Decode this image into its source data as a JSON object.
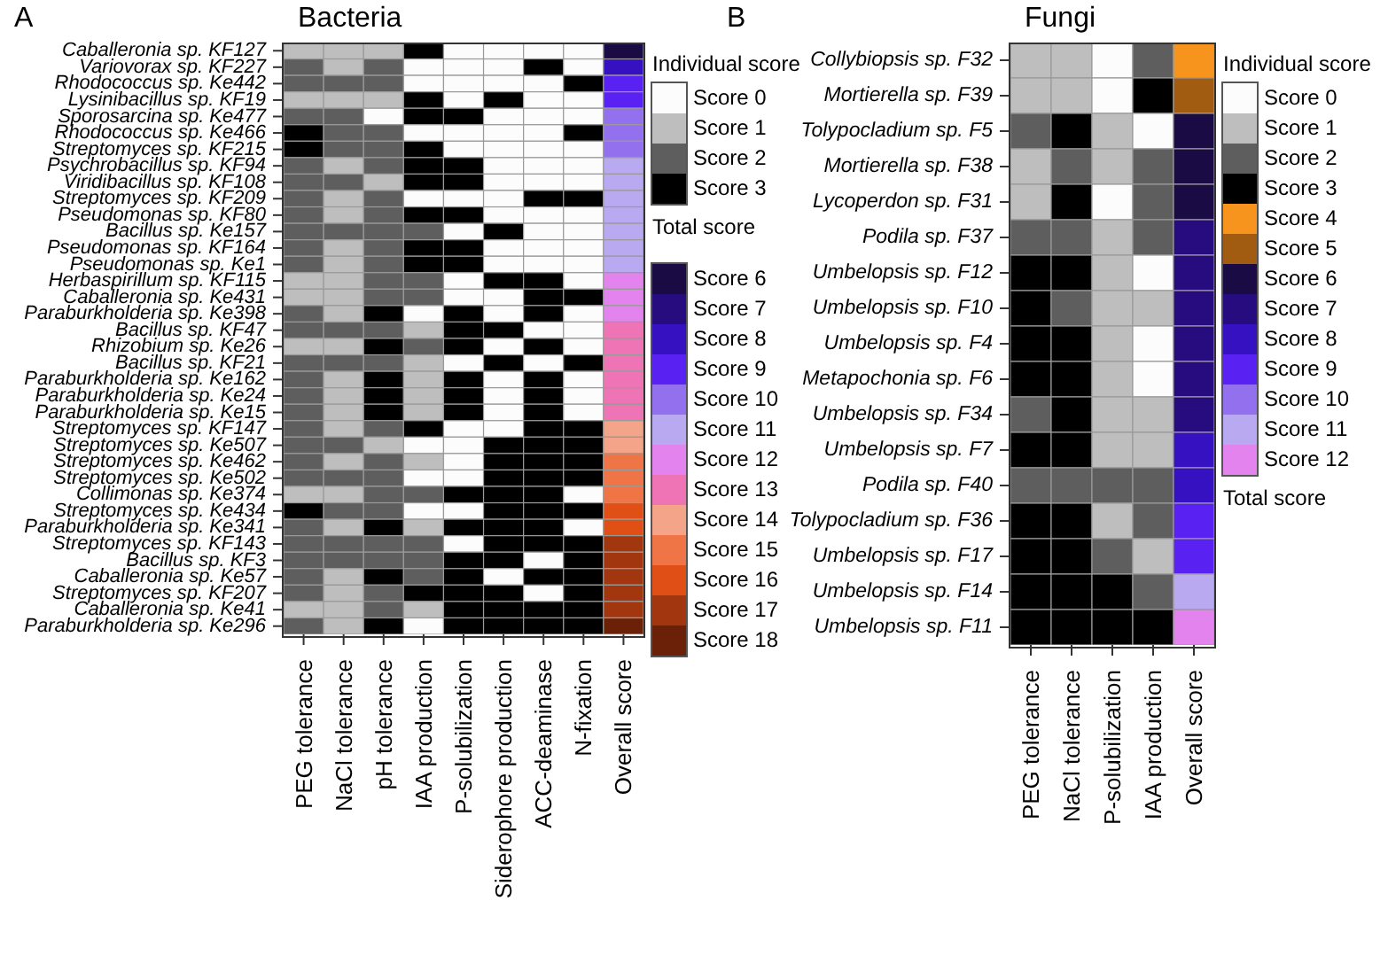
{
  "chart_data": [
    {
      "type": "heatmap",
      "title": "Bacteria",
      "annotations": [
        "A",
        "Total score"
      ],
      "legend_title": "Individual score",
      "categories": [
        "PEG tolerance",
        "NaCl tolerance",
        "pH tolerance",
        "IAA production",
        "P-solubilization",
        "Siderophore production",
        "ACC-deaminase",
        "N-fixation",
        "Overall score"
      ],
      "y_categories": [
        "Caballeronia sp. KF127",
        "Variovorax sp. KF227",
        "Rhodococcus sp. Ke442",
        "Lysinibacillus sp. KF19",
        "Sporosarcina sp. Ke477",
        "Rhodococcus sp. Ke466",
        "Streptomyces sp. KF215",
        "Psychrobacillus sp. KF94",
        "Viridibacillus sp. KF108",
        "Streptomyces sp. KF209",
        "Pseudomonas sp. KF80",
        "Bacillus sp. Ke157",
        "Pseudomonas sp. KF164",
        "Pseudomonas sp. Ke1",
        "Herbaspirillum sp. KF115",
        "Caballeronia sp. Ke431",
        "Paraburkholderia sp. Ke398",
        "Bacillus sp. KF47",
        "Rhizobium sp. Ke26",
        "Bacillus sp. KF21",
        "Paraburkholderia sp. Ke162",
        "Paraburkholderia sp. Ke24",
        "Paraburkholderia sp. Ke15",
        "Streptomyces sp. KF147",
        "Streptomyces sp. Ke507",
        "Streptomyces sp. Ke462",
        "Streptomyces sp. Ke502",
        "Collimonas sp. Ke374",
        "Streptomyces sp. Ke434",
        "Paraburkholderia sp. Ke341",
        "Streptomyces sp. KF143",
        "Bacillus sp. KF3",
        "Caballeronia sp. Ke57",
        "Streptomyces sp. KF207",
        "Caballeronia sp. Ke41",
        "Paraburkholderia sp. Ke296"
      ],
      "cells": [
        [
          1,
          1,
          1,
          3,
          0,
          0,
          0,
          0,
          6
        ],
        [
          2,
          1,
          2,
          0,
          0,
          0,
          3,
          0,
          8
        ],
        [
          2,
          2,
          2,
          0,
          0,
          0,
          0,
          3,
          9
        ],
        [
          1,
          1,
          1,
          3,
          0,
          3,
          0,
          0,
          9
        ],
        [
          2,
          2,
          0,
          3,
          3,
          0,
          0,
          0,
          10
        ],
        [
          3,
          2,
          2,
          0,
          0,
          0,
          0,
          3,
          10
        ],
        [
          3,
          2,
          2,
          3,
          0,
          0,
          0,
          0,
          10
        ],
        [
          2,
          1,
          2,
          3,
          3,
          0,
          0,
          0,
          11
        ],
        [
          2,
          2,
          1,
          3,
          3,
          0,
          0,
          0,
          11
        ],
        [
          2,
          1,
          2,
          0,
          0,
          0,
          3,
          3,
          11
        ],
        [
          2,
          1,
          2,
          3,
          3,
          0,
          0,
          0,
          11
        ],
        [
          2,
          2,
          2,
          2,
          0,
          3,
          0,
          0,
          11
        ],
        [
          2,
          1,
          2,
          3,
          3,
          0,
          0,
          0,
          11
        ],
        [
          2,
          1,
          2,
          3,
          3,
          0,
          0,
          0,
          11
        ],
        [
          1,
          1,
          2,
          2,
          0,
          3,
          3,
          0,
          12
        ],
        [
          1,
          1,
          2,
          2,
          0,
          0,
          3,
          3,
          12
        ],
        [
          2,
          1,
          3,
          0,
          3,
          0,
          3,
          0,
          12
        ],
        [
          2,
          2,
          2,
          1,
          3,
          3,
          0,
          0,
          13
        ],
        [
          1,
          1,
          3,
          2,
          3,
          0,
          3,
          0,
          13
        ],
        [
          2,
          2,
          2,
          1,
          0,
          3,
          0,
          3,
          13
        ],
        [
          2,
          1,
          3,
          1,
          3,
          0,
          3,
          0,
          13
        ],
        [
          2,
          1,
          3,
          1,
          3,
          0,
          3,
          0,
          13
        ],
        [
          2,
          1,
          3,
          1,
          3,
          0,
          3,
          0,
          13
        ],
        [
          2,
          1,
          2,
          3,
          0,
          0,
          3,
          3,
          14
        ],
        [
          2,
          2,
          1,
          0,
          0,
          3,
          3,
          3,
          14
        ],
        [
          2,
          1,
          2,
          1,
          0,
          3,
          3,
          3,
          15
        ],
        [
          2,
          2,
          2,
          0,
          0,
          3,
          3,
          3,
          15
        ],
        [
          1,
          1,
          2,
          2,
          3,
          3,
          3,
          0,
          15
        ],
        [
          3,
          2,
          2,
          0,
          0,
          3,
          3,
          3,
          16
        ],
        [
          2,
          1,
          3,
          1,
          3,
          3,
          3,
          0,
          16
        ],
        [
          2,
          2,
          2,
          2,
          0,
          3,
          3,
          3,
          17
        ],
        [
          2,
          2,
          2,
          2,
          3,
          3,
          0,
          3,
          17
        ],
        [
          2,
          1,
          3,
          2,
          3,
          0,
          3,
          3,
          17
        ],
        [
          2,
          1,
          2,
          3,
          3,
          3,
          0,
          3,
          17
        ],
        [
          1,
          1,
          2,
          1,
          3,
          3,
          3,
          3,
          17
        ],
        [
          2,
          1,
          3,
          0,
          3,
          3,
          3,
          3,
          18
        ]
      ],
      "cticks": [
        {
          "value": 0,
          "label": "Score 0"
        },
        {
          "value": 1,
          "label": "Score 1"
        },
        {
          "value": 2,
          "label": "Score 2"
        },
        {
          "value": 3,
          "label": "Score 3"
        },
        {
          "value": 6,
          "label": "Score 6"
        },
        {
          "value": 7,
          "label": "Score 7"
        },
        {
          "value": 8,
          "label": "Score 8"
        },
        {
          "value": 9,
          "label": "Score 9"
        },
        {
          "value": 10,
          "label": "Score 10"
        },
        {
          "value": 11,
          "label": "Score 11"
        },
        {
          "value": 12,
          "label": "Score 12"
        },
        {
          "value": 13,
          "label": "Score 13"
        },
        {
          "value": 14,
          "label": "Score 14"
        },
        {
          "value": 15,
          "label": "Score 15"
        },
        {
          "value": 16,
          "label": "Score 16"
        },
        {
          "value": 17,
          "label": "Score 17"
        },
        {
          "value": 18,
          "label": "Score 18"
        }
      ],
      "colors": [
        "#fcfcfc",
        "#bebebe",
        "#5e5e5e",
        "#000000",
        "#1b0b45",
        "#260c7e",
        "#3511c2",
        "#5a22f2",
        "#9270ee",
        "#b9a9f0",
        "#e283ee",
        "#ef74b5",
        "#f4a488",
        "#ef7446",
        "#df4f16",
        "#a2360f",
        "#6b2108"
      ]
    },
    {
      "type": "heatmap",
      "title": "Fungi",
      "annotations": [
        "B",
        "Total score"
      ],
      "legend_title": "Individual score",
      "categories": [
        "PEG tolerance",
        "NaCl tolerance",
        "P-solubilization",
        "IAA production",
        "Overall score"
      ],
      "y_categories": [
        "Collybiopsis sp. F32",
        "Mortierella sp. F39",
        "Tolypocladium sp. F5",
        "Mortierella sp. F38",
        "Lycoperdon sp. F31",
        "Podila sp. F37",
        "Umbelopsis sp. F12",
        "Umbelopsis sp. F10",
        "Umbelopsis sp. F4",
        "Metapochonia sp. F6",
        "Umbelopsis sp. F34",
        "Umbelopsis sp. F7",
        "Podila sp. F40",
        "Tolypocladium sp. F36",
        "Umbelopsis sp. F17",
        "Umbelopsis sp. F14",
        "Umbelopsis sp. F11"
      ],
      "cells": [
        [
          1,
          1,
          0,
          2,
          4
        ],
        [
          1,
          1,
          0,
          3,
          5
        ],
        [
          2,
          3,
          1,
          0,
          6
        ],
        [
          1,
          2,
          1,
          2,
          6
        ],
        [
          1,
          3,
          0,
          2,
          6
        ],
        [
          2,
          2,
          1,
          2,
          7
        ],
        [
          3,
          3,
          1,
          0,
          7
        ],
        [
          3,
          2,
          1,
          1,
          7
        ],
        [
          3,
          3,
          1,
          0,
          7
        ],
        [
          3,
          3,
          1,
          0,
          7
        ],
        [
          2,
          3,
          1,
          1,
          7
        ],
        [
          3,
          3,
          1,
          1,
          8
        ],
        [
          2,
          2,
          2,
          2,
          8
        ],
        [
          3,
          3,
          1,
          2,
          9
        ],
        [
          3,
          3,
          2,
          1,
          9
        ],
        [
          3,
          3,
          3,
          2,
          11
        ],
        [
          3,
          3,
          3,
          3,
          12
        ]
      ],
      "cticks": [
        {
          "value": 0,
          "label": "Score 0"
        },
        {
          "value": 1,
          "label": "Score 1"
        },
        {
          "value": 2,
          "label": "Score 2"
        },
        {
          "value": 3,
          "label": "Score 3"
        },
        {
          "value": 4,
          "label": "Score 4"
        },
        {
          "value": 5,
          "label": "Score 5"
        },
        {
          "value": 6,
          "label": "Score 6"
        },
        {
          "value": 7,
          "label": "Score 7"
        },
        {
          "value": 8,
          "label": "Score 8"
        },
        {
          "value": 9,
          "label": "Score 9"
        },
        {
          "value": 10,
          "label": "Score 10"
        },
        {
          "value": 11,
          "label": "Score 11"
        },
        {
          "value": 12,
          "label": "Score 12"
        }
      ],
      "colors": [
        "#fcfcfc",
        "#bebebe",
        "#5e5e5e",
        "#000000",
        "#f6941d",
        "#a15c12",
        "#1b0b45",
        "#260c7e",
        "#3511c2",
        "#5a22f2",
        "#9270ee",
        "#b9a9f0",
        "#e283ee"
      ]
    }
  ]
}
